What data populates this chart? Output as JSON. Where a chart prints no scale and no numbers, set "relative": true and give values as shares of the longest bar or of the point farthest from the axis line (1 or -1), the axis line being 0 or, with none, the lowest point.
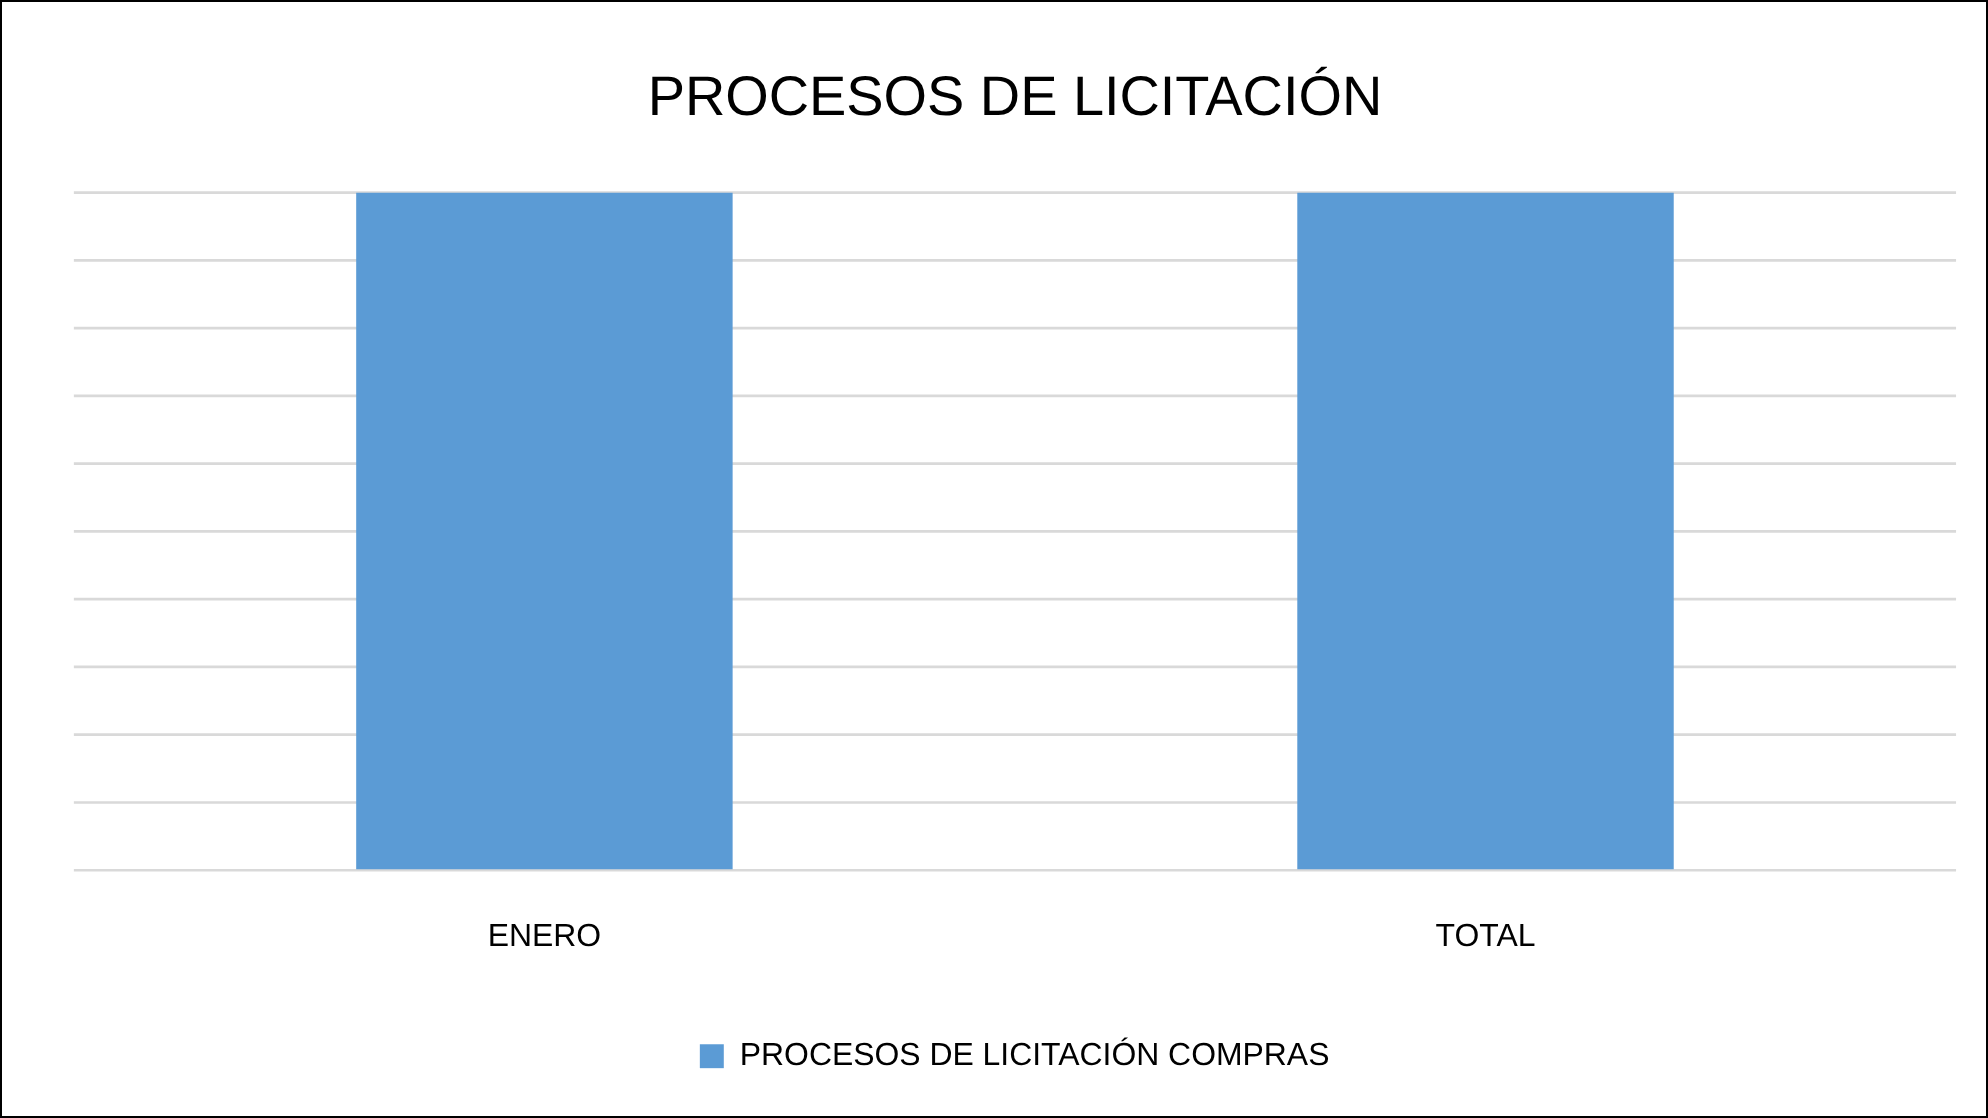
{
  "chart_data": {
    "type": "bar",
    "title": "PROCESOS DE LICITACIÓN",
    "categories": [
      "ENERO",
      "TOTAL"
    ],
    "relative": true,
    "grid": "y",
    "legend": "bottom",
    "series": [
      {
        "name": "PROCESOS DE LICITACIÓN COMPRAS",
        "color": "#5b9bd5",
        "values": [
          1,
          1
        ]
      }
    ]
  }
}
